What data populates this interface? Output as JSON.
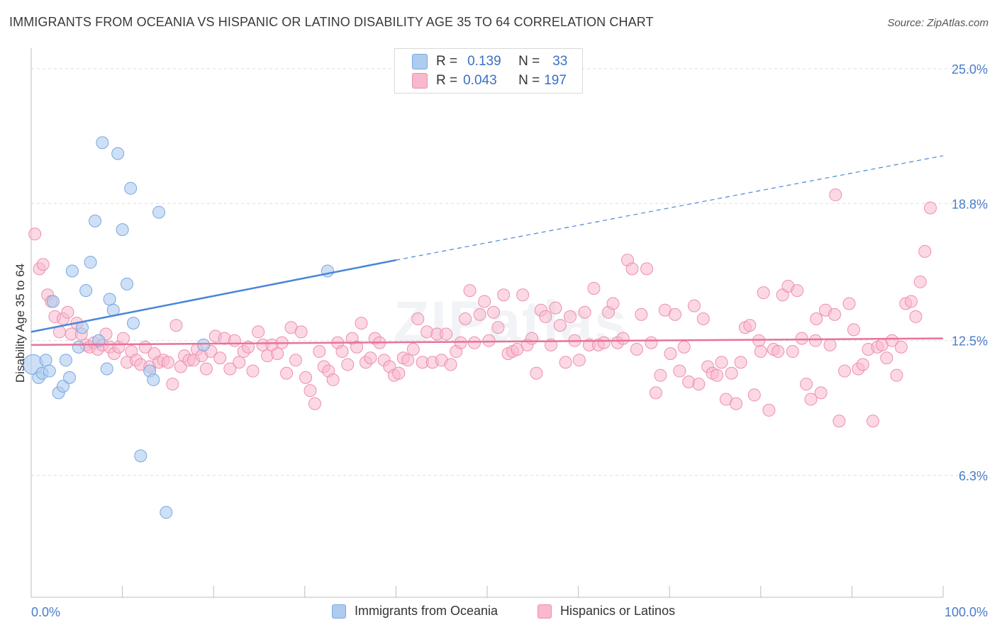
{
  "title": "IMMIGRANTS FROM OCEANIA VS HISPANIC OR LATINO DISABILITY AGE 35 TO 64 CORRELATION CHART",
  "source": "Source: ZipAtlas.com",
  "watermark": "ZIPatlas",
  "legend_top": {
    "rows": [
      {
        "r_label": "R =",
        "r_value": "0.139",
        "n_label": "N =",
        "n_value": "33",
        "color": "#aecbf0"
      },
      {
        "r_label": "R =",
        "r_value": "0.043",
        "n_label": "N =",
        "n_value": "197",
        "color": "#f9b8cd"
      }
    ]
  },
  "bottom_legend": {
    "series1": "Immigrants from Oceania",
    "series2": "Hispanics or Latinos"
  },
  "chart_data": {
    "type": "scatter",
    "title": "IMMIGRANTS FROM OCEANIA VS HISPANIC OR LATINO DISABILITY AGE 35 TO 64 CORRELATION CHART",
    "xlabel": "",
    "ylabel": "Disability Age 35 to 64",
    "xlim": [
      0,
      100
    ],
    "ylim": [
      0,
      26
    ],
    "x_ticks": [
      "0.0%",
      "100.0%"
    ],
    "y_ticks": [
      {
        "value": 6.3,
        "label": "6.3%"
      },
      {
        "value": 12.5,
        "label": "12.5%"
      },
      {
        "value": 18.8,
        "label": "18.8%"
      },
      {
        "value": 25.0,
        "label": "25.0%"
      }
    ],
    "grid": true,
    "colors": {
      "series1": "#4a86d8",
      "series1_fill": "#aecbf0",
      "series2": "#e8729a",
      "series2_fill": "#f9b8cd"
    },
    "series": [
      {
        "name": "Immigrants from Oceania",
        "trend": {
          "x0": 0,
          "y0": 12.9,
          "x1": 40,
          "y1": 16.2,
          "dash_to": [
            100,
            21.0
          ]
        },
        "points": [
          [
            0.2,
            11.4
          ],
          [
            0.8,
            10.8
          ],
          [
            1.2,
            11.0
          ],
          [
            1.6,
            11.6
          ],
          [
            2.0,
            11.1
          ],
          [
            2.4,
            14.3
          ],
          [
            3.0,
            10.1
          ],
          [
            3.5,
            10.4
          ],
          [
            3.8,
            11.6
          ],
          [
            4.2,
            10.8
          ],
          [
            4.5,
            15.7
          ],
          [
            5.2,
            12.2
          ],
          [
            5.6,
            13.1
          ],
          [
            6.0,
            14.8
          ],
          [
            6.5,
            16.1
          ],
          [
            7.0,
            18.0
          ],
          [
            7.4,
            12.5
          ],
          [
            7.8,
            21.6
          ],
          [
            8.3,
            11.2
          ],
          [
            8.6,
            14.4
          ],
          [
            9.0,
            13.9
          ],
          [
            9.5,
            21.1
          ],
          [
            10.0,
            17.6
          ],
          [
            10.5,
            15.1
          ],
          [
            10.9,
            19.5
          ],
          [
            11.2,
            13.3
          ],
          [
            12.0,
            7.2
          ],
          [
            13.0,
            11.1
          ],
          [
            13.4,
            10.7
          ],
          [
            14.0,
            18.4
          ],
          [
            14.8,
            4.6
          ],
          [
            18.9,
            12.3
          ],
          [
            32.5,
            15.7
          ]
        ]
      },
      {
        "name": "Hispanics or Latinos",
        "trend": {
          "x0": 0,
          "y0": 12.3,
          "x1": 100,
          "y1": 12.6
        },
        "points": [
          [
            0.4,
            17.4
          ],
          [
            0.9,
            15.8
          ],
          [
            1.3,
            16.0
          ],
          [
            1.8,
            14.6
          ],
          [
            2.2,
            14.3
          ],
          [
            2.6,
            13.6
          ],
          [
            3.1,
            12.9
          ],
          [
            3.5,
            13.5
          ],
          [
            4.0,
            13.8
          ],
          [
            4.4,
            12.8
          ],
          [
            5.0,
            13.3
          ],
          [
            5.5,
            12.8
          ],
          [
            6.0,
            12.3
          ],
          [
            6.4,
            12.2
          ],
          [
            6.9,
            12.4
          ],
          [
            7.3,
            12.1
          ],
          [
            7.8,
            12.3
          ],
          [
            8.2,
            12.8
          ],
          [
            8.6,
            12.2
          ],
          [
            9.1,
            11.9
          ],
          [
            9.6,
            12.2
          ],
          [
            10.1,
            12.6
          ],
          [
            10.5,
            11.5
          ],
          [
            11.0,
            12.0
          ],
          [
            11.5,
            11.6
          ],
          [
            12.0,
            11.4
          ],
          [
            12.5,
            12.2
          ],
          [
            13.0,
            11.3
          ],
          [
            13.5,
            11.9
          ],
          [
            14.0,
            11.5
          ],
          [
            14.5,
            11.6
          ],
          [
            15.0,
            11.5
          ],
          [
            15.5,
            10.5
          ],
          [
            15.9,
            13.2
          ],
          [
            16.4,
            11.3
          ],
          [
            16.8,
            11.8
          ],
          [
            17.3,
            11.6
          ],
          [
            17.8,
            11.6
          ],
          [
            18.2,
            12.1
          ],
          [
            18.7,
            11.8
          ],
          [
            19.2,
            11.2
          ],
          [
            19.7,
            12.0
          ],
          [
            20.2,
            12.7
          ],
          [
            20.7,
            11.7
          ],
          [
            21.2,
            12.6
          ],
          [
            21.8,
            11.2
          ],
          [
            22.3,
            12.5
          ],
          [
            22.8,
            11.5
          ],
          [
            23.3,
            12.0
          ],
          [
            23.8,
            12.2
          ],
          [
            24.3,
            11.1
          ],
          [
            24.9,
            12.9
          ],
          [
            25.4,
            12.3
          ],
          [
            25.9,
            11.8
          ],
          [
            26.4,
            12.3
          ],
          [
            27.0,
            11.9
          ],
          [
            27.5,
            12.4
          ],
          [
            28.0,
            11.0
          ],
          [
            28.5,
            13.1
          ],
          [
            29.0,
            11.6
          ],
          [
            29.6,
            12.9
          ],
          [
            30.1,
            10.8
          ],
          [
            30.6,
            10.2
          ],
          [
            31.1,
            9.6
          ],
          [
            31.6,
            12.0
          ],
          [
            32.1,
            11.3
          ],
          [
            32.6,
            11.1
          ],
          [
            33.1,
            10.7
          ],
          [
            33.6,
            12.4
          ],
          [
            34.1,
            12.0
          ],
          [
            34.7,
            11.4
          ],
          [
            35.2,
            12.6
          ],
          [
            35.7,
            12.2
          ],
          [
            36.2,
            13.3
          ],
          [
            36.7,
            11.5
          ],
          [
            37.2,
            11.7
          ],
          [
            37.7,
            12.6
          ],
          [
            38.2,
            12.4
          ],
          [
            38.7,
            11.6
          ],
          [
            39.3,
            11.3
          ],
          [
            39.8,
            10.9
          ],
          [
            40.3,
            11.0
          ],
          [
            40.8,
            11.7
          ],
          [
            41.3,
            11.6
          ],
          [
            41.9,
            12.1
          ],
          [
            42.4,
            13.5
          ],
          [
            42.9,
            11.5
          ],
          [
            43.4,
            12.9
          ],
          [
            44.0,
            11.5
          ],
          [
            44.5,
            12.8
          ],
          [
            45.0,
            11.6
          ],
          [
            45.5,
            12.8
          ],
          [
            46.0,
            11.4
          ],
          [
            46.6,
            12.0
          ],
          [
            47.1,
            12.4
          ],
          [
            47.6,
            13.5
          ],
          [
            48.1,
            14.8
          ],
          [
            48.6,
            12.4
          ],
          [
            49.2,
            13.7
          ],
          [
            49.7,
            14.3
          ],
          [
            50.2,
            12.5
          ],
          [
            50.7,
            13.8
          ],
          [
            51.2,
            13.1
          ],
          [
            51.8,
            14.6
          ],
          [
            52.3,
            11.9
          ],
          [
            52.8,
            12.0
          ],
          [
            53.3,
            12.1
          ],
          [
            53.9,
            14.6
          ],
          [
            54.4,
            12.3
          ],
          [
            54.9,
            12.6
          ],
          [
            55.4,
            11.0
          ],
          [
            55.9,
            13.9
          ],
          [
            56.4,
            13.6
          ],
          [
            57.0,
            12.3
          ],
          [
            57.5,
            14.0
          ],
          [
            58.0,
            13.2
          ],
          [
            58.6,
            11.5
          ],
          [
            59.1,
            13.6
          ],
          [
            59.6,
            12.5
          ],
          [
            60.1,
            11.6
          ],
          [
            60.7,
            13.8
          ],
          [
            61.2,
            12.3
          ],
          [
            61.7,
            14.9
          ],
          [
            62.2,
            12.3
          ],
          [
            62.8,
            12.4
          ],
          [
            63.3,
            13.8
          ],
          [
            63.8,
            14.2
          ],
          [
            64.3,
            12.4
          ],
          [
            64.9,
            12.6
          ],
          [
            65.4,
            16.2
          ],
          [
            65.9,
            15.8
          ],
          [
            66.4,
            12.1
          ],
          [
            66.9,
            13.7
          ],
          [
            67.5,
            15.8
          ],
          [
            68.0,
            12.4
          ],
          [
            68.5,
            10.1
          ],
          [
            69.0,
            10.9
          ],
          [
            69.5,
            13.9
          ],
          [
            70.1,
            11.9
          ],
          [
            70.6,
            13.7
          ],
          [
            71.1,
            11.1
          ],
          [
            71.6,
            12.2
          ],
          [
            72.1,
            10.6
          ],
          [
            72.7,
            14.1
          ],
          [
            73.2,
            10.5
          ],
          [
            73.7,
            13.5
          ],
          [
            74.2,
            11.3
          ],
          [
            74.7,
            11.0
          ],
          [
            75.2,
            10.9
          ],
          [
            75.7,
            11.5
          ],
          [
            76.2,
            9.8
          ],
          [
            76.8,
            11.0
          ],
          [
            77.3,
            9.6
          ],
          [
            77.8,
            11.5
          ],
          [
            78.3,
            13.1
          ],
          [
            78.8,
            13.2
          ],
          [
            79.3,
            10.0
          ],
          [
            79.8,
            12.5
          ],
          [
            80.3,
            14.7
          ],
          [
            80.9,
            9.3
          ],
          [
            81.4,
            12.1
          ],
          [
            81.9,
            12.0
          ],
          [
            82.4,
            14.6
          ],
          [
            83.0,
            15.0
          ],
          [
            83.5,
            12.0
          ],
          [
            84.0,
            14.8
          ],
          [
            84.5,
            12.6
          ],
          [
            85.0,
            10.5
          ],
          [
            85.5,
            9.8
          ],
          [
            86.1,
            13.5
          ],
          [
            86.6,
            10.1
          ],
          [
            87.1,
            13.9
          ],
          [
            87.6,
            12.3
          ],
          [
            88.1,
            13.7
          ],
          [
            88.6,
            8.8
          ],
          [
            89.2,
            11.1
          ],
          [
            89.7,
            14.2
          ],
          [
            90.2,
            13.0
          ],
          [
            90.7,
            11.2
          ],
          [
            91.2,
            11.4
          ],
          [
            91.8,
            12.1
          ],
          [
            92.3,
            8.8
          ],
          [
            92.8,
            12.2
          ],
          [
            93.3,
            12.3
          ],
          [
            93.8,
            11.7
          ],
          [
            94.4,
            12.5
          ],
          [
            94.9,
            10.9
          ],
          [
            95.4,
            12.2
          ],
          [
            95.9,
            14.2
          ],
          [
            96.5,
            14.3
          ],
          [
            97.0,
            13.6
          ],
          [
            97.5,
            15.2
          ],
          [
            98.0,
            16.6
          ],
          [
            98.6,
            18.6
          ],
          [
            88.2,
            19.2
          ],
          [
            86.0,
            12.5
          ],
          [
            80.0,
            12.0
          ]
        ]
      }
    ]
  }
}
